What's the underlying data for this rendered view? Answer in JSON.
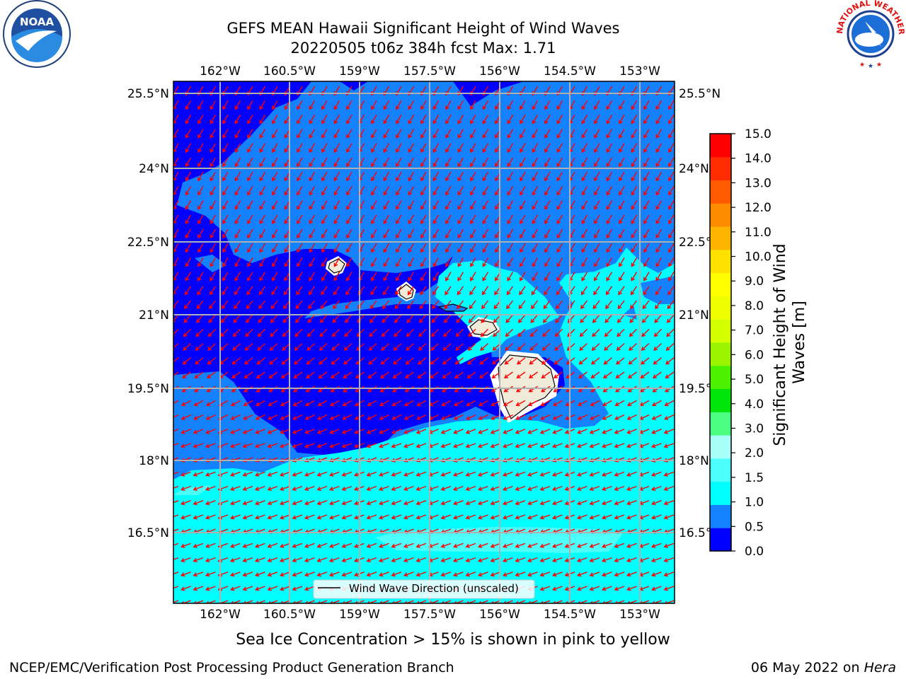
{
  "title": {
    "line1": "GEFS MEAN Hawaii Significant Height of Wind Waves",
    "line2": "20220505 t06z 384h fcst   Max: 1.71"
  },
  "map": {
    "lon_labels": [
      "162°W",
      "160.5°W",
      "159°W",
      "157.5°W",
      "156°W",
      "154.5°W",
      "153°W"
    ],
    "lat_labels": [
      "25.5°N",
      "24°N",
      "22.5°N",
      "21°N",
      "19.5°N",
      "18°N",
      "16.5°N"
    ],
    "legend_label": "Wind Wave Direction (unscaled)",
    "colors": {
      "band_0_0_5": "#0000ff",
      "band_0_5_1_0": "#1482ff",
      "band_1_0_1_5": "#00ffff",
      "band_1_5_2_0": "#4dfffb",
      "land": "#efebd8",
      "arrows": "#ff0000",
      "grid": "#b0b0b0"
    }
  },
  "colorbar": {
    "label": "Significant Height of Wind Waves [m]",
    "ticks": [
      "0.0",
      "0.5",
      "1.0",
      "1.5",
      "2.0",
      "3.0",
      "4.0",
      "5.0",
      "6.0",
      "7.0",
      "8.0",
      "9.0",
      "10.0",
      "11.0",
      "12.0",
      "13.0",
      "14.0",
      "15.0"
    ],
    "colors": [
      "#0000ff",
      "#1482ff",
      "#00ffff",
      "#4dfffb",
      "#a6fff8",
      "#4dff80",
      "#00e60b",
      "#4bf200",
      "#9bf500",
      "#d4ff00",
      "#f0ff00",
      "#ffff00",
      "#ffe100",
      "#ffb400",
      "#ff8c00",
      "#ff5a00",
      "#ff2d00",
      "#ff0000"
    ]
  },
  "caption": "Sea Ice Concentration > 15% is shown in pink to yellow",
  "footer": {
    "left": "NCEP/EMC/Verification Post Processing Product Generation Branch",
    "right_prefix": "06 May 2022 on ",
    "right_host": "Hera"
  },
  "logos": {
    "noaa_text": "NOAA",
    "nws_text": "NATIONAL WEATHER SERVICE"
  }
}
